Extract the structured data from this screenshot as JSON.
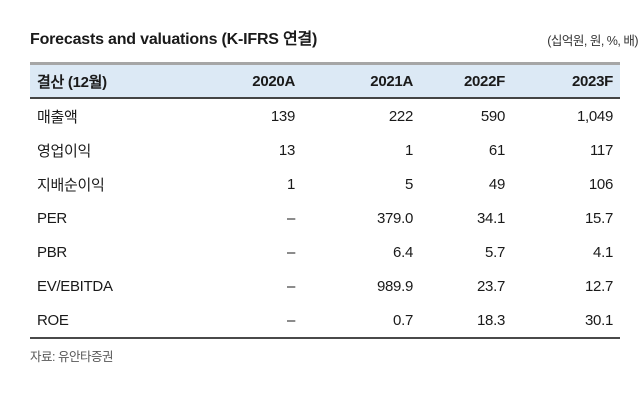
{
  "title": "Forecasts and valuations (K-IFRS 연결)",
  "units_label": "(십억원, 원, %, 배)",
  "source_note": "자료: 유안타증권",
  "colors": {
    "header_bg": "#dce9f5",
    "top_rule": "#a6a6a6",
    "dark_rule": "#4a4a4a",
    "body_text": "#1a1a1a",
    "source_text": "#595959"
  },
  "table": {
    "columns": [
      "결산 (12월)",
      "2020A",
      "2021A",
      "2022F",
      "2023F"
    ],
    "rows": [
      {
        "label": "매출액",
        "values": [
          "139",
          "222",
          "590",
          "1,049"
        ]
      },
      {
        "label": "영업이익",
        "values": [
          "13",
          "1",
          "61",
          "117"
        ]
      },
      {
        "label": "지배순이익",
        "values": [
          "1",
          "5",
          "49",
          "106"
        ]
      },
      {
        "label": "PER",
        "values": [
          "–",
          "379.0",
          "34.1",
          "15.7"
        ]
      },
      {
        "label": "PBR",
        "values": [
          "–",
          "6.4",
          "5.7",
          "4.1"
        ]
      },
      {
        "label": "EV/EBITDA",
        "values": [
          "–",
          "989.9",
          "23.7",
          "12.7"
        ]
      },
      {
        "label": "ROE",
        "values": [
          "–",
          "0.7",
          "18.3",
          "30.1"
        ]
      }
    ]
  }
}
